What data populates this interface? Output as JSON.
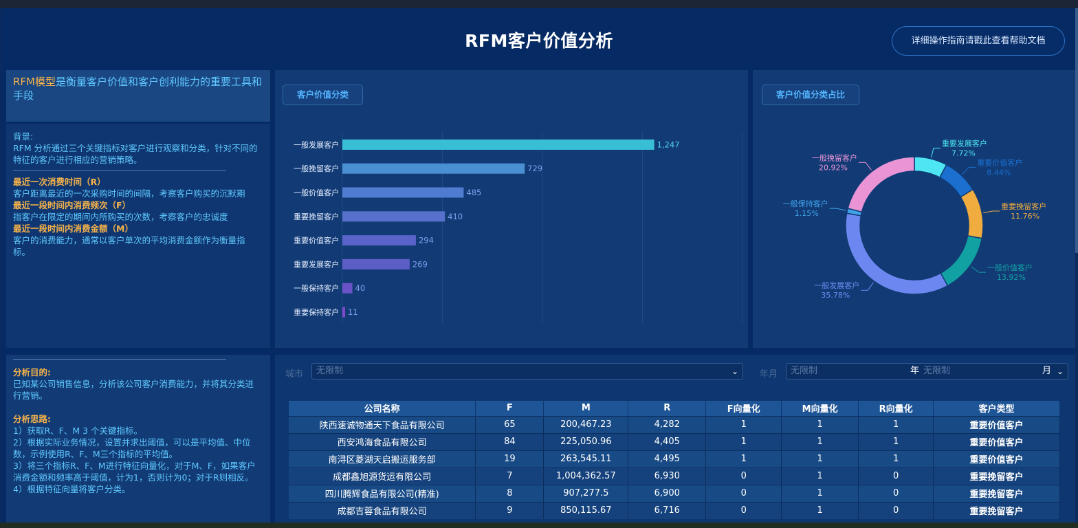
{
  "header": {
    "title": "RFM客户价值分析",
    "help_button": "详细操作指南请戳此查看帮助文档"
  },
  "intro": {
    "highlight": "RFM模型",
    "text": "是衡量客户价值和客户创利能力的重要工具和手段"
  },
  "background": {
    "label": "背景:",
    "text": "RFM 分析通过三个关键指标对客户进行观察和分类，针对不同的特征的客户进行相应的营销策略。",
    "r_title": "最近一次消费时间（R）",
    "r_text": "客户距离最近的一次采购时间的间隔，考察客户购买的沉默期",
    "f_title": "最近一段时间内消费频次（F）",
    "f_text": "指客户在限定的期间内所购买的次数，考察客户的忠诚度",
    "m_title": "最近一段时间内消费金额（M）",
    "m_text": "客户的消费能力，通常以客户单次的平均消费金额作为衡量指标。"
  },
  "goal": {
    "purpose_title": "分析目的:",
    "purpose_text": "已知某公司销售信息，分析该公司客户消费能力，并将其分类进行营销。",
    "idea_title": "分析思路:",
    "step1": "1）获取R、F、M 3 个关键指标。",
    "step2": "2）根据实际业务情况，设置并求出阈值，可以是平均值、中位数，示例使用R、F、M三个指标的平均值。",
    "step3": "3）将三个指标R、F、M进行特征向量化，对于M、F，如果客户消费金额和频率高于阈值，计为1，否则计为0；对于R则相反。",
    "step4": "4）根据特征向量将客户分类。"
  },
  "bar_panel": {
    "tag": "客户价值分类"
  },
  "pie_panel": {
    "tag": "客户价值分类占比"
  },
  "chart_data": [
    {
      "type": "bar",
      "categories": [
        "一般发展客户",
        "一般挽留客户",
        "一般价值客户",
        "重要挽留客户",
        "重要价值客户",
        "重要发展客户",
        "一般保持客户",
        "重要保持客户"
      ],
      "values": [
        1247,
        729,
        485,
        410,
        294,
        269,
        40,
        11
      ],
      "value_labels": [
        "1,247",
        "729",
        "485",
        "410",
        "294",
        "269",
        "40",
        "11"
      ],
      "colors": [
        "#38bfd6",
        "#4b8fd3",
        "#4f7bd0",
        "#5670cb",
        "#5a63c9",
        "#5c5ec6",
        "#6a52c7",
        "#7a4bc8"
      ],
      "xlim": [
        0,
        1600
      ],
      "grid": true
    },
    {
      "type": "pie",
      "donut": true,
      "slices": [
        {
          "label": "重要发展客户",
          "value": 7.72,
          "text": "7.72%",
          "color": "#4de6f2"
        },
        {
          "label": "重要价值客户",
          "value": 8.44,
          "text": "8.44%",
          "color": "#1a6fcf"
        },
        {
          "label": "重要挽留客户",
          "value": 11.76,
          "text": "11.76%",
          "color": "#f0ac3e"
        },
        {
          "label": "一般价值客户",
          "value": 13.92,
          "text": "13.92%",
          "color": "#12a1a3"
        },
        {
          "label": "一般发展客户",
          "value": 35.78,
          "text": "35.78%",
          "color": "#6c88f0"
        },
        {
          "label": "一般保持客户",
          "value": 1.15,
          "text": "1.15%",
          "color": "#3fa2e8"
        },
        {
          "label": "一般挽留客户",
          "value": 20.92,
          "text": "20.92%",
          "color": "#ea94d6"
        }
      ]
    }
  ],
  "filters": {
    "city_label": "城市",
    "city_placeholder": "无限制",
    "ym_label": "年月",
    "year_placeholder": "无限制",
    "year_unit": "年",
    "month_placeholder": "无限制",
    "month_unit": "月"
  },
  "table": {
    "headers": [
      "公司名称",
      "F",
      "M",
      "R",
      "F向量化",
      "M向量化",
      "R向量化",
      "客户类型"
    ],
    "rows": [
      [
        "陕西速诚物通天下食品有限公司",
        "65",
        "200,467.23",
        "4,282",
        "1",
        "1",
        "1",
        "重要价值客户"
      ],
      [
        "西安鸿海食品有限公司",
        "84",
        "225,050.96",
        "4,405",
        "1",
        "1",
        "1",
        "重要价值客户"
      ],
      [
        "南浔区菱湖天启搬运服务部",
        "19",
        "263,545.11",
        "4,495",
        "1",
        "1",
        "1",
        "重要价值客户"
      ],
      [
        "成都鑫旭源货运有限公司",
        "7",
        "1,004,362.57",
        "6,930",
        "0",
        "1",
        "0",
        "重要挽留客户"
      ],
      [
        "四川腾辉食品有限公司(精准)",
        "8",
        "907,277.5",
        "6,900",
        "0",
        "1",
        "0",
        "重要挽留客户"
      ],
      [
        "成都吉蓉食品有限公司",
        "9",
        "850,115.67",
        "6,716",
        "0",
        "1",
        "0",
        "重要挽留客户"
      ]
    ]
  }
}
